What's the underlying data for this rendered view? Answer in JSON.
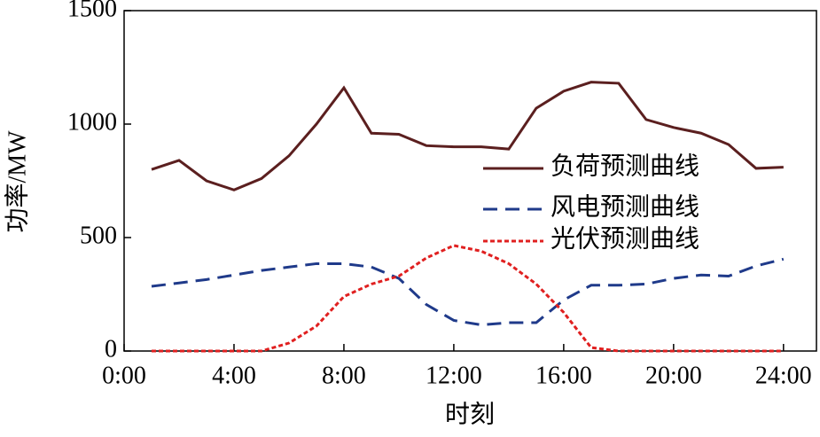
{
  "chart_data": {
    "type": "line",
    "xlabel": "时刻",
    "ylabel": "功率/MW",
    "x": [
      1,
      2,
      3,
      4,
      5,
      6,
      7,
      8,
      9,
      10,
      11,
      12,
      13,
      14,
      15,
      16,
      17,
      18,
      19,
      20,
      21,
      22,
      23,
      24
    ],
    "series": [
      {
        "name": "负荷预测曲线",
        "color": "#5b1f1f",
        "linestyle": "solid",
        "values": [
          800,
          840,
          750,
          710,
          760,
          860,
          1000,
          1160,
          960,
          955,
          905,
          900,
          900,
          890,
          1070,
          1145,
          1185,
          1180,
          1020,
          985,
          960,
          910,
          805,
          810
        ]
      },
      {
        "name": "风电预测曲线",
        "color": "#1f3a8a",
        "linestyle": "dashed",
        "values": [
          285,
          300,
          315,
          335,
          355,
          370,
          385,
          385,
          370,
          320,
          205,
          135,
          115,
          125,
          125,
          225,
          290,
          290,
          295,
          320,
          335,
          330,
          375,
          405
        ]
      },
      {
        "name": "光伏预测曲线",
        "color": "#e02020",
        "linestyle": "dotted",
        "values": [
          0,
          0,
          0,
          0,
          0,
          35,
          110,
          240,
          295,
          330,
          410,
          465,
          440,
          385,
          295,
          170,
          15,
          0,
          0,
          0,
          0,
          0,
          0,
          0
        ]
      }
    ],
    "xlim": [
      0,
      25.2
    ],
    "ylim": [
      0,
      1500
    ],
    "xticks": [
      {
        "value": 0,
        "label": "0:00"
      },
      {
        "value": 4,
        "label": "4:00"
      },
      {
        "value": 8,
        "label": "8:00"
      },
      {
        "value": 12,
        "label": "12:00"
      },
      {
        "value": 16,
        "label": "16:00"
      },
      {
        "value": 20,
        "label": "20:00"
      },
      {
        "value": 24,
        "label": "24:00"
      }
    ],
    "yticks": [
      0,
      500,
      1000,
      1500
    ],
    "grid": false,
    "legend": "right"
  }
}
